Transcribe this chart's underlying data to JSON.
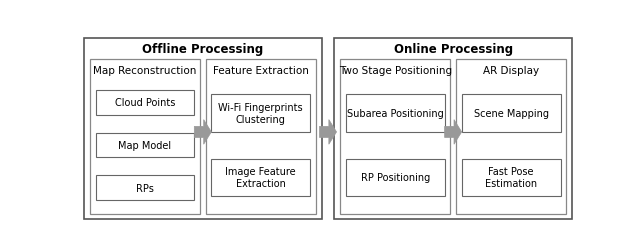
{
  "title_offline": "Offline Processing",
  "title_online": "Online Processing",
  "box1_title": "Map Reconstruction",
  "box2_title": "Feature Extraction",
  "box3_title": "Two Stage Positioning",
  "box4_title": "AR Display",
  "box1_items": [
    "Cloud Points",
    "Map Model",
    "RPs"
  ],
  "box2_items": [
    "Wi-Fi Fingerprints\nClustering",
    "Image Feature\nExtraction"
  ],
  "box3_items": [
    "Subarea Positioning",
    "RP Positioning"
  ],
  "box4_items": [
    "Scene Mapping",
    "Fast Pose\nEstimation"
  ],
  "background": "#ffffff",
  "outer_edge_color": "#555555",
  "inner_edge_color": "#888888",
  "item_edge_color": "#666666",
  "arrow_color": "#888888",
  "text_color": "#000000",
  "title_fontsize": 8.5,
  "section_title_fontsize": 7.5,
  "item_fontsize": 7.0,
  "outer_lw": 1.2,
  "inner_lw": 0.9,
  "item_lw": 0.8
}
